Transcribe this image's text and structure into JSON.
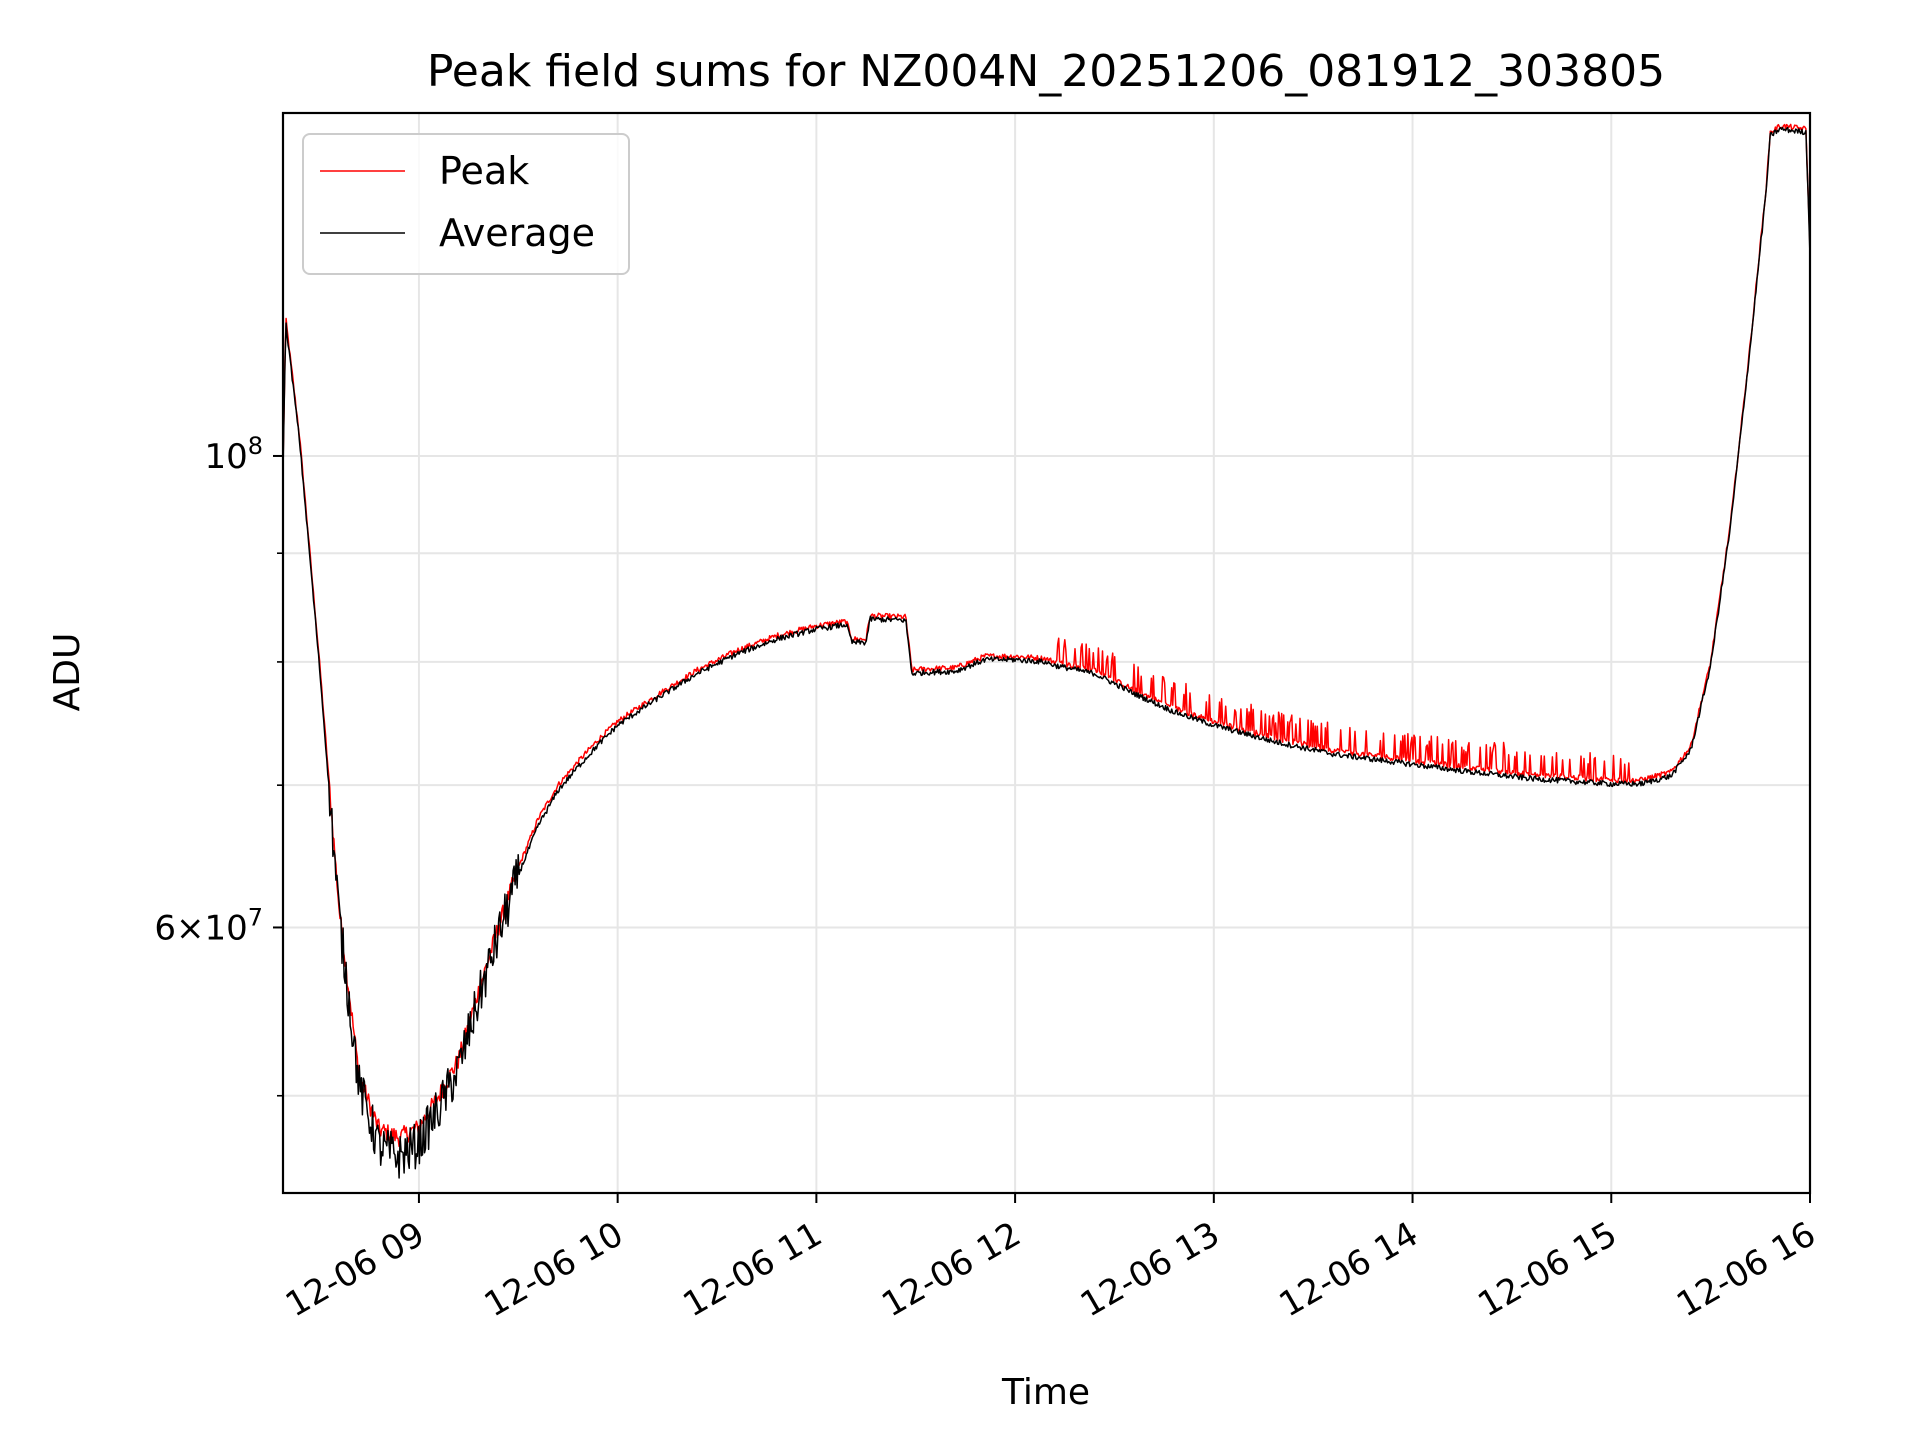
{
  "chart_data": {
    "type": "line",
    "title": "Peak field sums for NZ004N_20251206_081912_303805",
    "xlabel": "Time",
    "ylabel": "ADU",
    "yscale": "log",
    "ylim": [
      45000000,
      145000000
    ],
    "xlim_hours": [
      8.316,
      16.0
    ],
    "grid": true,
    "legend_loc": "upper left",
    "x_ticks": [
      {
        "hour": 9,
        "label": "12-06 09"
      },
      {
        "hour": 10,
        "label": "12-06 10"
      },
      {
        "hour": 11,
        "label": "12-06 11"
      },
      {
        "hour": 12,
        "label": "12-06 12"
      },
      {
        "hour": 13,
        "label": "12-06 13"
      },
      {
        "hour": 14,
        "label": "12-06 14"
      },
      {
        "hour": 15,
        "label": "12-06 15"
      },
      {
        "hour": 16,
        "label": "12-06 16"
      }
    ],
    "y_major_ticks": [
      {
        "value": 100000000,
        "base": "10",
        "exp": "8"
      },
      {
        "value": 60000000,
        "mantissa": "6",
        "base": "10",
        "exp": "7"
      }
    ],
    "y_minor_ticks": [
      50000000,
      70000000,
      80000000,
      90000000
    ],
    "series": [
      {
        "name": "Peak",
        "color": "#ff0000",
        "x": [
          8.316,
          8.33,
          8.4,
          8.5,
          8.6,
          8.7,
          8.8,
          8.9,
          9.0,
          9.1,
          9.2,
          9.3,
          9.4,
          9.5,
          9.6,
          9.7,
          9.8,
          9.9,
          10.0,
          10.2,
          10.4,
          10.6,
          10.8,
          11.0,
          11.15,
          11.18,
          11.25,
          11.27,
          11.45,
          11.48,
          11.55,
          11.7,
          11.85,
          12.0,
          12.15,
          12.2,
          12.4,
          12.6,
          12.8,
          13.0,
          13.3,
          13.6,
          14.0,
          14.3,
          14.6,
          15.0,
          15.15,
          15.3,
          15.4,
          15.5,
          15.6,
          15.7,
          15.78,
          15.8,
          15.85,
          15.98,
          16.0
        ],
        "y": [
          99000000,
          116000000,
          102000000,
          80000000,
          61000000,
          51000000,
          48200000,
          47800000,
          48300000,
          50000000,
          52000000,
          56000000,
          60000000,
          64000000,
          67500000,
          70000000,
          71800000,
          73500000,
          75000000,
          77200000,
          79300000,
          81000000,
          82300000,
          83200000,
          83600000,
          82000000,
          82000000,
          84100000,
          84000000,
          79300000,
          79400000,
          79500000,
          80500000,
          80500000,
          80300000,
          80000000,
          79300000,
          77600000,
          76100000,
          75000000,
          73700000,
          72700000,
          71900000,
          71300000,
          70800000,
          70400000,
          70400000,
          71000000,
          73000000,
          80000000,
          93000000,
          113000000,
          134000000,
          142000000,
          143000000,
          142500000,
          125000000
        ],
        "spikes_note": "intermittent upward spikes between 12-06 12 and 12-06 15"
      },
      {
        "name": "Average",
        "color": "#000000",
        "x": [
          8.316,
          8.33,
          8.4,
          8.5,
          8.6,
          8.7,
          8.8,
          8.9,
          9.0,
          9.1,
          9.2,
          9.3,
          9.4,
          9.5,
          9.6,
          9.7,
          9.8,
          9.9,
          10.0,
          10.2,
          10.4,
          10.6,
          10.8,
          11.0,
          11.15,
          11.18,
          11.25,
          11.27,
          11.45,
          11.48,
          11.55,
          11.7,
          11.85,
          12.0,
          12.15,
          12.2,
          12.4,
          12.6,
          12.8,
          13.0,
          13.3,
          13.6,
          14.0,
          14.3,
          14.6,
          15.0,
          15.15,
          15.3,
          15.4,
          15.5,
          15.6,
          15.7,
          15.78,
          15.8,
          15.85,
          15.98,
          16.0
        ],
        "y": [
          98500000,
          115500000,
          101500000,
          79500000,
          60500000,
          50500000,
          47300000,
          46800000,
          47500000,
          49300000,
          51500000,
          55500000,
          59500000,
          63500000,
          67000000,
          69600000,
          71400000,
          73100000,
          74700000,
          76900000,
          79000000,
          80700000,
          82000000,
          82900000,
          83300000,
          81700000,
          81700000,
          83800000,
          83700000,
          79000000,
          79100000,
          79200000,
          80200000,
          80200000,
          80000000,
          79700000,
          79000000,
          77300000,
          75800000,
          74700000,
          73400000,
          72400000,
          71600000,
          71000000,
          70500000,
          70100000,
          70100000,
          70700000,
          72700000,
          79700000,
          92700000,
          112700000,
          133500000,
          141500000,
          142500000,
          142000000,
          124500000
        ]
      }
    ]
  }
}
